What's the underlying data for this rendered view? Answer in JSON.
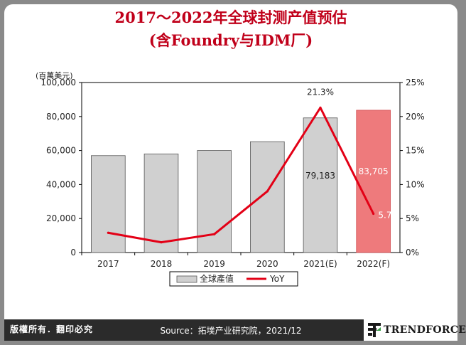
{
  "header": {
    "title_line1": "2017～2022年全球封测产值预估",
    "title_line2": "(含Foundry与IDM厂)"
  },
  "footer": {
    "rights": "版權所有．翻印必究",
    "source": "Source：拓墣产业研究院，2021/12",
    "logo": "TRENDFORCE"
  },
  "colors": {
    "bar": "#d0d0d0",
    "bar_forecast": "#ee7a7c",
    "line": "#e30016",
    "title": "#c0001a"
  },
  "chart_data": {
    "type": "bar",
    "title": "2017～2022年全球封测产值预估 (含Foundry与IDM厂)",
    "ylabel": "(百萬美元)",
    "categories": [
      "2017",
      "2018",
      "2019",
      "2020",
      "2021(E)",
      "2022(F)"
    ],
    "ylim": [
      0,
      100000
    ],
    "y_ticks": [
      "0",
      "20,000",
      "40,000",
      "60,000",
      "80,000",
      "100,000"
    ],
    "y2lim": [
      0,
      25
    ],
    "y2_ticks": [
      "0%",
      "5%",
      "10%",
      "15%",
      "20%",
      "25%"
    ],
    "legend_position": "bottom",
    "grid": false,
    "series": [
      {
        "name": "全球產值",
        "type": "bar",
        "axis": "left",
        "values": [
          57000,
          58000,
          60000,
          65200,
          79183,
          83705
        ]
      },
      {
        "name": "YoY",
        "type": "line",
        "axis": "right",
        "values": [
          2.9,
          1.5,
          2.7,
          9.0,
          21.3,
          5.7
        ]
      }
    ],
    "data_labels": [
      {
        "series": "全球產值",
        "index": 4,
        "text": "79,183"
      },
      {
        "series": "全球產值",
        "index": 5,
        "text": "83,705"
      },
      {
        "series": "YoY",
        "index": 4,
        "text": "21.3%"
      },
      {
        "series": "YoY",
        "index": 5,
        "text": "5.7%"
      }
    ]
  }
}
